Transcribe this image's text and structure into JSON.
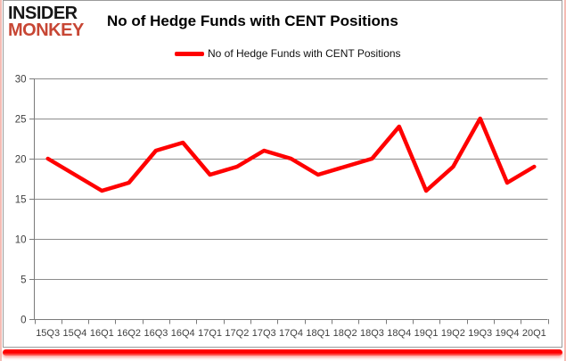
{
  "brand": {
    "line1": "INSIDER",
    "line2": "MONKEY"
  },
  "title": "No of Hedge Funds with CENT Positions",
  "legend": {
    "label": "No of Hedge Funds with CENT Positions",
    "marker_color": "#ff0000"
  },
  "chart_data": {
    "type": "line",
    "title": "No of Hedge Funds with CENT Positions",
    "categories": [
      "15Q3",
      "15Q4",
      "16Q1",
      "16Q2",
      "16Q3",
      "16Q4",
      "17Q1",
      "17Q2",
      "17Q3",
      "17Q4",
      "18Q1",
      "18Q2",
      "18Q3",
      "18Q4",
      "19Q1",
      "19Q2",
      "19Q3",
      "19Q4",
      "20Q1"
    ],
    "series": [
      {
        "name": "No of Hedge Funds with CENT Positions",
        "color": "#ff0000",
        "values": [
          20,
          18,
          16,
          17,
          21,
          22,
          18,
          19,
          21,
          20,
          18,
          19,
          20,
          24,
          16,
          19,
          25,
          17,
          19
        ]
      }
    ],
    "xlabel": "",
    "ylabel": "",
    "ylim": [
      0,
      30
    ],
    "ytick_step": 5,
    "grid": "horizontal",
    "legend_position": "top"
  },
  "colors": {
    "grid": "#8c8c8c",
    "axis": "#7a7a7a",
    "tick_label": "#3f3f3f",
    "brand_monkey": "#c74634",
    "frame_edge": "#f5bcb4",
    "bottom_bar": "#ff0000"
  }
}
